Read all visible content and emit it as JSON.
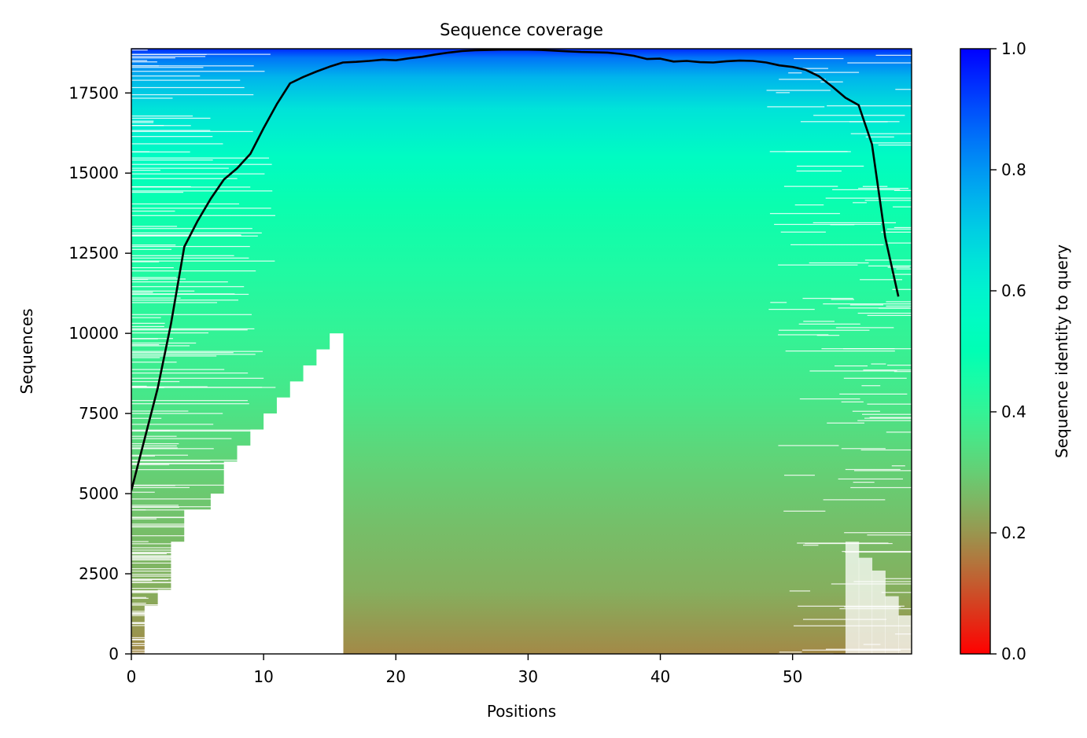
{
  "chart_data": {
    "type": "heatmap",
    "title": "Sequence coverage",
    "xlabel": "Positions",
    "ylabel": "Sequences",
    "xlim": [
      0,
      59
    ],
    "ylim": [
      0,
      18880
    ],
    "x_ticks": [
      0,
      10,
      20,
      30,
      40,
      50
    ],
    "y_ticks": [
      0,
      2500,
      5000,
      7500,
      10000,
      12500,
      15000,
      17500
    ],
    "x_tick_labels": [
      "0",
      "10",
      "20",
      "30",
      "40",
      "50"
    ],
    "y_tick_labels": [
      "0",
      "2500",
      "5000",
      "7500",
      "10000",
      "12500",
      "15000",
      "17500"
    ],
    "colorbar": {
      "label": "Sequence identity to query",
      "colormap": "rainbow_r",
      "range": [
        0.0,
        1.0
      ],
      "ticks": [
        0.0,
        0.2,
        0.4,
        0.6,
        0.8,
        1.0
      ],
      "tick_labels": [
        "0.0",
        "0.2",
        "0.4",
        "0.6",
        "0.8",
        "1.0"
      ]
    },
    "identity_by_rank": {
      "sequences": [
        0,
        2000,
        4000,
        6000,
        8000,
        10000,
        12000,
        14000,
        15500,
        17000,
        18000,
        18600,
        18880
      ],
      "identity": [
        0.18,
        0.24,
        0.27,
        0.31,
        0.36,
        0.4,
        0.44,
        0.48,
        0.55,
        0.65,
        0.75,
        0.85,
        0.95
      ]
    },
    "coverage_line": {
      "color": "#000000",
      "x": [
        0,
        1,
        2,
        3,
        4,
        5,
        6,
        7,
        8,
        9,
        10,
        11,
        12,
        13,
        14,
        15,
        16,
        17,
        18,
        19,
        20,
        21,
        22,
        23,
        24,
        25,
        26,
        27,
        28,
        29,
        30,
        31,
        32,
        33,
        34,
        35,
        36,
        37,
        38,
        39,
        40,
        41,
        42,
        43,
        44,
        45,
        46,
        47,
        48,
        49,
        50,
        51,
        52,
        53,
        54,
        55,
        56,
        57,
        58
      ],
      "y": [
        5100,
        6700,
        8300,
        10300,
        12700,
        13500,
        14200,
        14800,
        15150,
        15600,
        16400,
        17150,
        17800,
        18000,
        18170,
        18320,
        18450,
        18470,
        18500,
        18540,
        18520,
        18580,
        18630,
        18700,
        18760,
        18810,
        18830,
        18840,
        18850,
        18850,
        18850,
        18840,
        18820,
        18800,
        18780,
        18770,
        18760,
        18720,
        18660,
        18560,
        18570,
        18480,
        18500,
        18460,
        18450,
        18490,
        18510,
        18500,
        18450,
        18360,
        18310,
        18220,
        18020,
        17700,
        17350,
        17120,
        15900,
        13000,
        11150
      ]
    },
    "position_coverage_start": [
      0,
      1500,
      2000,
      3500,
      4500,
      4500,
      5000,
      6000,
      6500,
      7000,
      7500,
      8000,
      8500,
      9000,
      9500,
      10000
    ],
    "trailing_gap_depth": [
      3500,
      3000,
      2600,
      1800,
      1200
    ]
  }
}
